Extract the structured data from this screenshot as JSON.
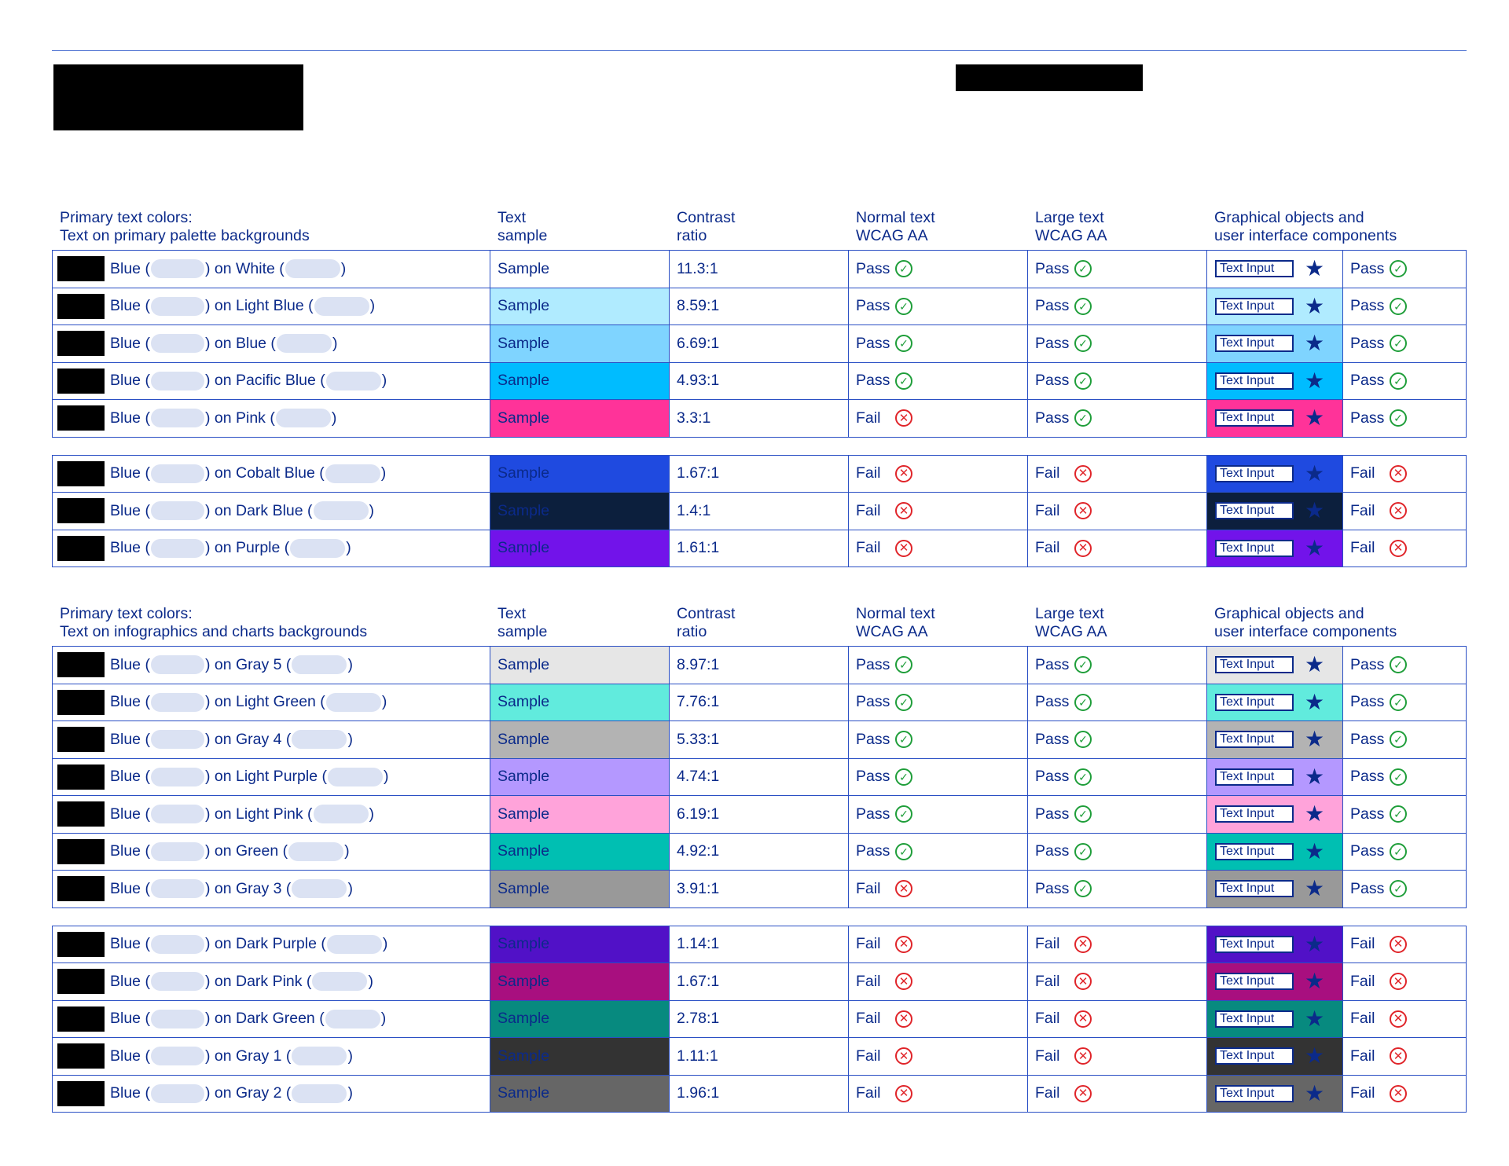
{
  "section1": {
    "header": {
      "col1": "Primary text colors:\nText on primary palette backgrounds",
      "col2": "Text\nsample",
      "col3": "Contrast\nratio",
      "col4": "Normal text\nWCAG AA",
      "col5": "Large text\nWCAG AA",
      "col6": "Graphical objects and\nuser interface components"
    },
    "groups": [
      [
        {
          "text": "Blue",
          "bg_name": "White",
          "bg": "#ffffff",
          "sample": "Sample",
          "ratio": "11.3:1",
          "normal": "Pass",
          "large": "Pass",
          "gfx": "Pass",
          "input": "Text Input"
        },
        {
          "text": "Blue",
          "bg_name": "Light Blue",
          "bg": "#b0ebff",
          "sample": "Sample",
          "ratio": "8.59:1",
          "normal": "Pass",
          "large": "Pass",
          "gfx": "Pass",
          "input": "Text Input"
        },
        {
          "text": "Blue",
          "bg_name": "Blue",
          "bg": "#7fd4ff",
          "sample": "Sample",
          "ratio": "6.69:1",
          "normal": "Pass",
          "large": "Pass",
          "gfx": "Pass",
          "input": "Text Input"
        },
        {
          "text": "Blue",
          "bg_name": "Pacific Blue",
          "bg": "#00bcff",
          "sample": "Sample",
          "ratio": "4.93:1",
          "normal": "Pass",
          "large": "Pass",
          "gfx": "Pass",
          "input": "Text Input"
        },
        {
          "text": "Blue",
          "bg_name": "Pink",
          "bg": "#ff3399",
          "sample": "Sample",
          "ratio": "3.3:1",
          "normal": "Fail",
          "large": "Pass",
          "gfx": "Pass",
          "input": "Text Input"
        }
      ],
      [
        {
          "text": "Blue",
          "bg_name": "Cobalt Blue",
          "bg": "#1f4ae0",
          "sample": "Sample",
          "ratio": "1.67:1",
          "normal": "Fail",
          "large": "Fail",
          "gfx": "Fail",
          "input": "Text Input"
        },
        {
          "text": "Blue",
          "bg_name": "Dark Blue",
          "bg": "#0c1f3d",
          "sample": "Sample",
          "ratio": "1.4:1",
          "normal": "Fail",
          "large": "Fail",
          "gfx": "Fail",
          "input": "Text Input"
        },
        {
          "text": "Blue",
          "bg_name": "Purple",
          "bg": "#7213ea",
          "sample": "Sample",
          "ratio": "1.61:1",
          "normal": "Fail",
          "large": "Fail",
          "gfx": "Fail",
          "input": "Text Input"
        }
      ]
    ]
  },
  "section2": {
    "header": {
      "col1": "Primary text colors:\nText on infographics and charts backgrounds",
      "col2": "Text\nsample",
      "col3": "Contrast\nratio",
      "col4": "Normal text\nWCAG AA",
      "col5": "Large text\nWCAG AA",
      "col6": "Graphical objects and\nuser interface components"
    },
    "groups": [
      [
        {
          "text": "Blue",
          "bg_name": "Gray 5",
          "bg": "#e6e6e6",
          "sample": "Sample",
          "ratio": "8.97:1",
          "normal": "Pass",
          "large": "Pass",
          "gfx": "Pass",
          "input": "Text Input"
        },
        {
          "text": "Blue",
          "bg_name": "Light Green",
          "bg": "#61ebdd",
          "sample": "Sample",
          "ratio": "7.76:1",
          "normal": "Pass",
          "large": "Pass",
          "gfx": "Pass",
          "input": "Text Input"
        },
        {
          "text": "Blue",
          "bg_name": "Gray 4",
          "bg": "#b3b3b3",
          "sample": "Sample",
          "ratio": "5.33:1",
          "normal": "Pass",
          "large": "Pass",
          "gfx": "Pass",
          "input": "Text Input"
        },
        {
          "text": "Blue",
          "bg_name": "Light Purple",
          "bg": "#b498ff",
          "sample": "Sample",
          "ratio": "4.74:1",
          "normal": "Pass",
          "large": "Pass",
          "gfx": "Pass",
          "input": "Text Input"
        },
        {
          "text": "Blue",
          "bg_name": "Light Pink",
          "bg": "#ffa3da",
          "sample": "Sample",
          "ratio": "6.19:1",
          "normal": "Pass",
          "large": "Pass",
          "gfx": "Pass",
          "input": "Text Input"
        },
        {
          "text": "Blue",
          "bg_name": "Green",
          "bg": "#00bfb2",
          "sample": "Sample",
          "ratio": "4.92:1",
          "normal": "Pass",
          "large": "Pass",
          "gfx": "Pass",
          "input": "Text Input"
        },
        {
          "text": "Blue",
          "bg_name": "Gray 3",
          "bg": "#999999",
          "sample": "Sample",
          "ratio": "3.91:1",
          "normal": "Fail",
          "large": "Pass",
          "gfx": "Pass",
          "input": "Text Input"
        }
      ],
      [
        {
          "text": "Blue",
          "bg_name": "Dark Purple",
          "bg": "#5111c7",
          "sample": "Sample",
          "ratio": "1.14:1",
          "normal": "Fail",
          "large": "Fail",
          "gfx": "Fail",
          "input": "Text Input"
        },
        {
          "text": "Blue",
          "bg_name": "Dark Pink",
          "bg": "#a80f7f",
          "sample": "Sample",
          "ratio": "1.67:1",
          "normal": "Fail",
          "large": "Fail",
          "gfx": "Fail",
          "input": "Text Input"
        },
        {
          "text": "Blue",
          "bg_name": "Dark Green",
          "bg": "#078a7f",
          "sample": "Sample",
          "ratio": "2.78:1",
          "normal": "Fail",
          "large": "Fail",
          "gfx": "Fail",
          "input": "Text Input"
        },
        {
          "text": "Blue",
          "bg_name": "Gray 1",
          "bg": "#333333",
          "sample": "Sample",
          "ratio": "1.11:1",
          "normal": "Fail",
          "large": "Fail",
          "gfx": "Fail",
          "input": "Text Input"
        },
        {
          "text": "Blue",
          "bg_name": "Gray 2",
          "bg": "#666666",
          "sample": "Sample",
          "ratio": "1.96:1",
          "normal": "Fail",
          "large": "Fail",
          "gfx": "Fail",
          "input": "Text Input"
        }
      ]
    ]
  },
  "colors": {
    "text_blue": "#0b2a8a",
    "border": "#2a4fc4",
    "pass": "#1f9e3a",
    "fail": "#e0252a"
  },
  "icons": {
    "pass": "check-circle-icon",
    "fail": "x-circle-icon",
    "star": "star-icon"
  }
}
